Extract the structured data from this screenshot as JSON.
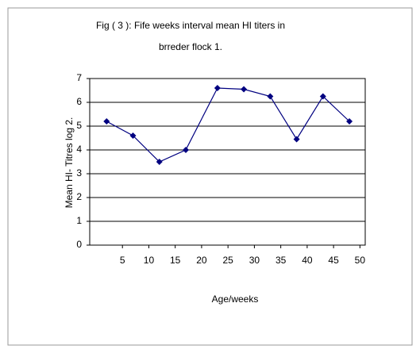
{
  "chart_data": {
    "type": "line",
    "title": [
      "Fig ( 3 ): Fife weeks interval mean HI titers in",
      "brreder flock 1."
    ],
    "x_label": "Age/weeks",
    "y_label": "Mean HI- Titres log 2.",
    "x": [
      2,
      7,
      12,
      17,
      23,
      28,
      33,
      38,
      43,
      48
    ],
    "series": [
      {
        "name": "Mean HI titers",
        "color": "#000080",
        "values": [
          5.2,
          4.6,
          3.5,
          4.0,
          6.6,
          6.55,
          6.25,
          4.45,
          6.25,
          5.2
        ]
      }
    ],
    "xlim": [
      -1.2,
      51
    ],
    "xticks": [
      5,
      10,
      15,
      20,
      25,
      30,
      35,
      40,
      45,
      50
    ],
    "ylim": [
      0,
      7
    ],
    "yticks": [
      0,
      1,
      2,
      3,
      4,
      5,
      6,
      7
    ],
    "grid": true
  }
}
